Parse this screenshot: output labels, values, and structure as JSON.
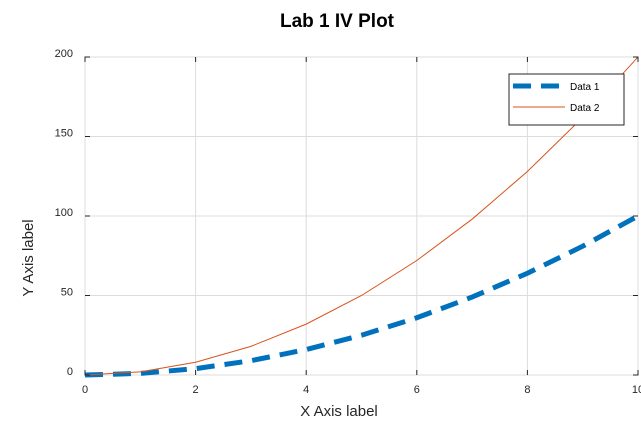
{
  "chart_data": {
    "type": "line",
    "title": "Lab 1 IV Plot",
    "xlabel": "X Axis label",
    "ylabel": "Y Axis label",
    "xlim": [
      0,
      10
    ],
    "ylim": [
      0,
      200
    ],
    "x_ticks": [
      0,
      2,
      4,
      6,
      8,
      10
    ],
    "y_ticks": [
      0,
      50,
      100,
      150,
      200
    ],
    "grid": true,
    "legend_position": "top-right",
    "x": [
      0,
      1,
      2,
      3,
      4,
      5,
      6,
      7,
      8,
      9,
      10
    ],
    "series": [
      {
        "name": "Data 1",
        "values": [
          0,
          1,
          4,
          9,
          16,
          25,
          36,
          49,
          64,
          81,
          100
        ],
        "color": "#0072BD",
        "line_style": "dashed"
      },
      {
        "name": "Data 2",
        "values": [
          0,
          2,
          8,
          18,
          32,
          50,
          72,
          98,
          128,
          162,
          200
        ],
        "color": "#D95319",
        "line_style": "solid"
      }
    ]
  }
}
